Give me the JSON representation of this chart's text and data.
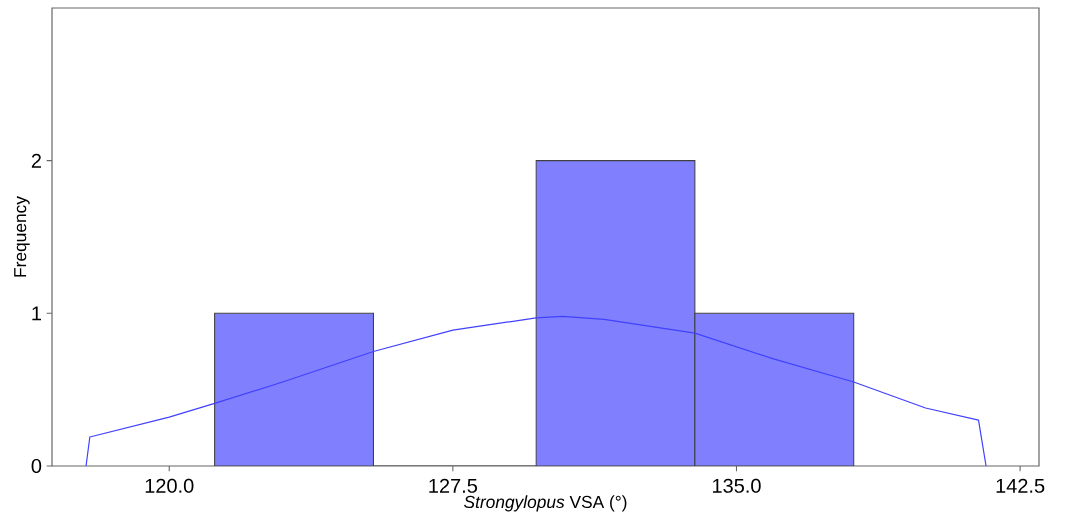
{
  "chart_data": {
    "type": "histogram",
    "xlabel": "*Strongylopus* VSA (°)",
    "ylabel": "Frequency",
    "bins": [
      121.2,
      125.4,
      129.7,
      133.9,
      138.1
    ],
    "values": [
      1,
      0,
      2,
      1
    ],
    "color": "#8080ff",
    "series": [
      {
        "type": "line",
        "color": "#4040ff",
        "x": [
          117.8,
          117.9,
          120,
          121.2,
          123,
          125.4,
          127.5,
          129.7,
          130.4,
          131.5,
          133.9,
          136,
          138.1,
          140,
          141.4,
          141.6
        ],
        "values": [
          0,
          0.19,
          0.32,
          0.41,
          0.55,
          0.75,
          0.89,
          0.97,
          0.98,
          0.96,
          0.87,
          0.7,
          0.55,
          0.38,
          0.3,
          0
        ]
      }
    ],
    "xlim": [
      116.9,
      143.0
    ],
    "ylim": [
      0,
      3
    ],
    "xticks": [
      {
        "value": 120,
        "label": "120.0"
      },
      {
        "value": 127.5,
        "label": "127.5"
      },
      {
        "value": 135,
        "label": "135.0"
      },
      {
        "value": 142.5,
        "label": "142.5"
      }
    ],
    "yticks": [
      0,
      1,
      2
    ]
  }
}
